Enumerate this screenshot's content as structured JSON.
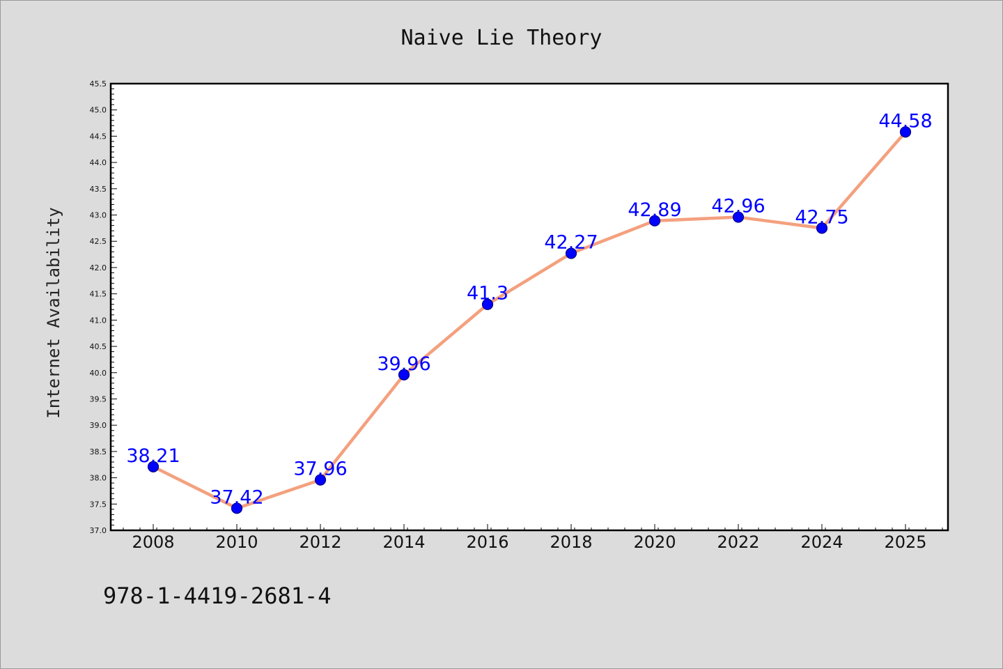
{
  "chart_data": {
    "type": "line",
    "title": "Naive Lie Theory",
    "xlabel": "",
    "ylabel": "Internet Availability",
    "categories": [
      "2008",
      "2010",
      "2012",
      "2014",
      "2016",
      "2018",
      "2020",
      "2022",
      "2024",
      "2025"
    ],
    "series": [
      {
        "values": [
          38.21,
          37.42,
          37.96,
          39.96,
          41.3,
          42.27,
          42.89,
          42.96,
          42.75,
          44.58
        ],
        "data_labels": [
          "38.21",
          "37.42",
          "37.96",
          "39.96",
          "41.3",
          "42.27",
          "42.89",
          "42.96",
          "42.75",
          "44.58"
        ]
      }
    ],
    "ylim": [
      37.0,
      45.5
    ],
    "yticks": [
      "37.0",
      "37.5",
      "38.0",
      "38.5",
      "39.0",
      "39.5",
      "40.0",
      "40.5",
      "41.0",
      "41.5",
      "42.0",
      "42.5",
      "43.0",
      "43.5",
      "44.0",
      "44.5",
      "45.0",
      "45.5"
    ],
    "grid": false,
    "legend": "none",
    "annotations": [
      "978-1-4419-2681-4"
    ]
  },
  "colors": {
    "background": "#dcdcdc",
    "plot_area": "#ffffff",
    "line": "#f4a07e",
    "marker_fill": "#0000ff",
    "marker_edge": "#000080",
    "data_label": "#0000ff"
  }
}
